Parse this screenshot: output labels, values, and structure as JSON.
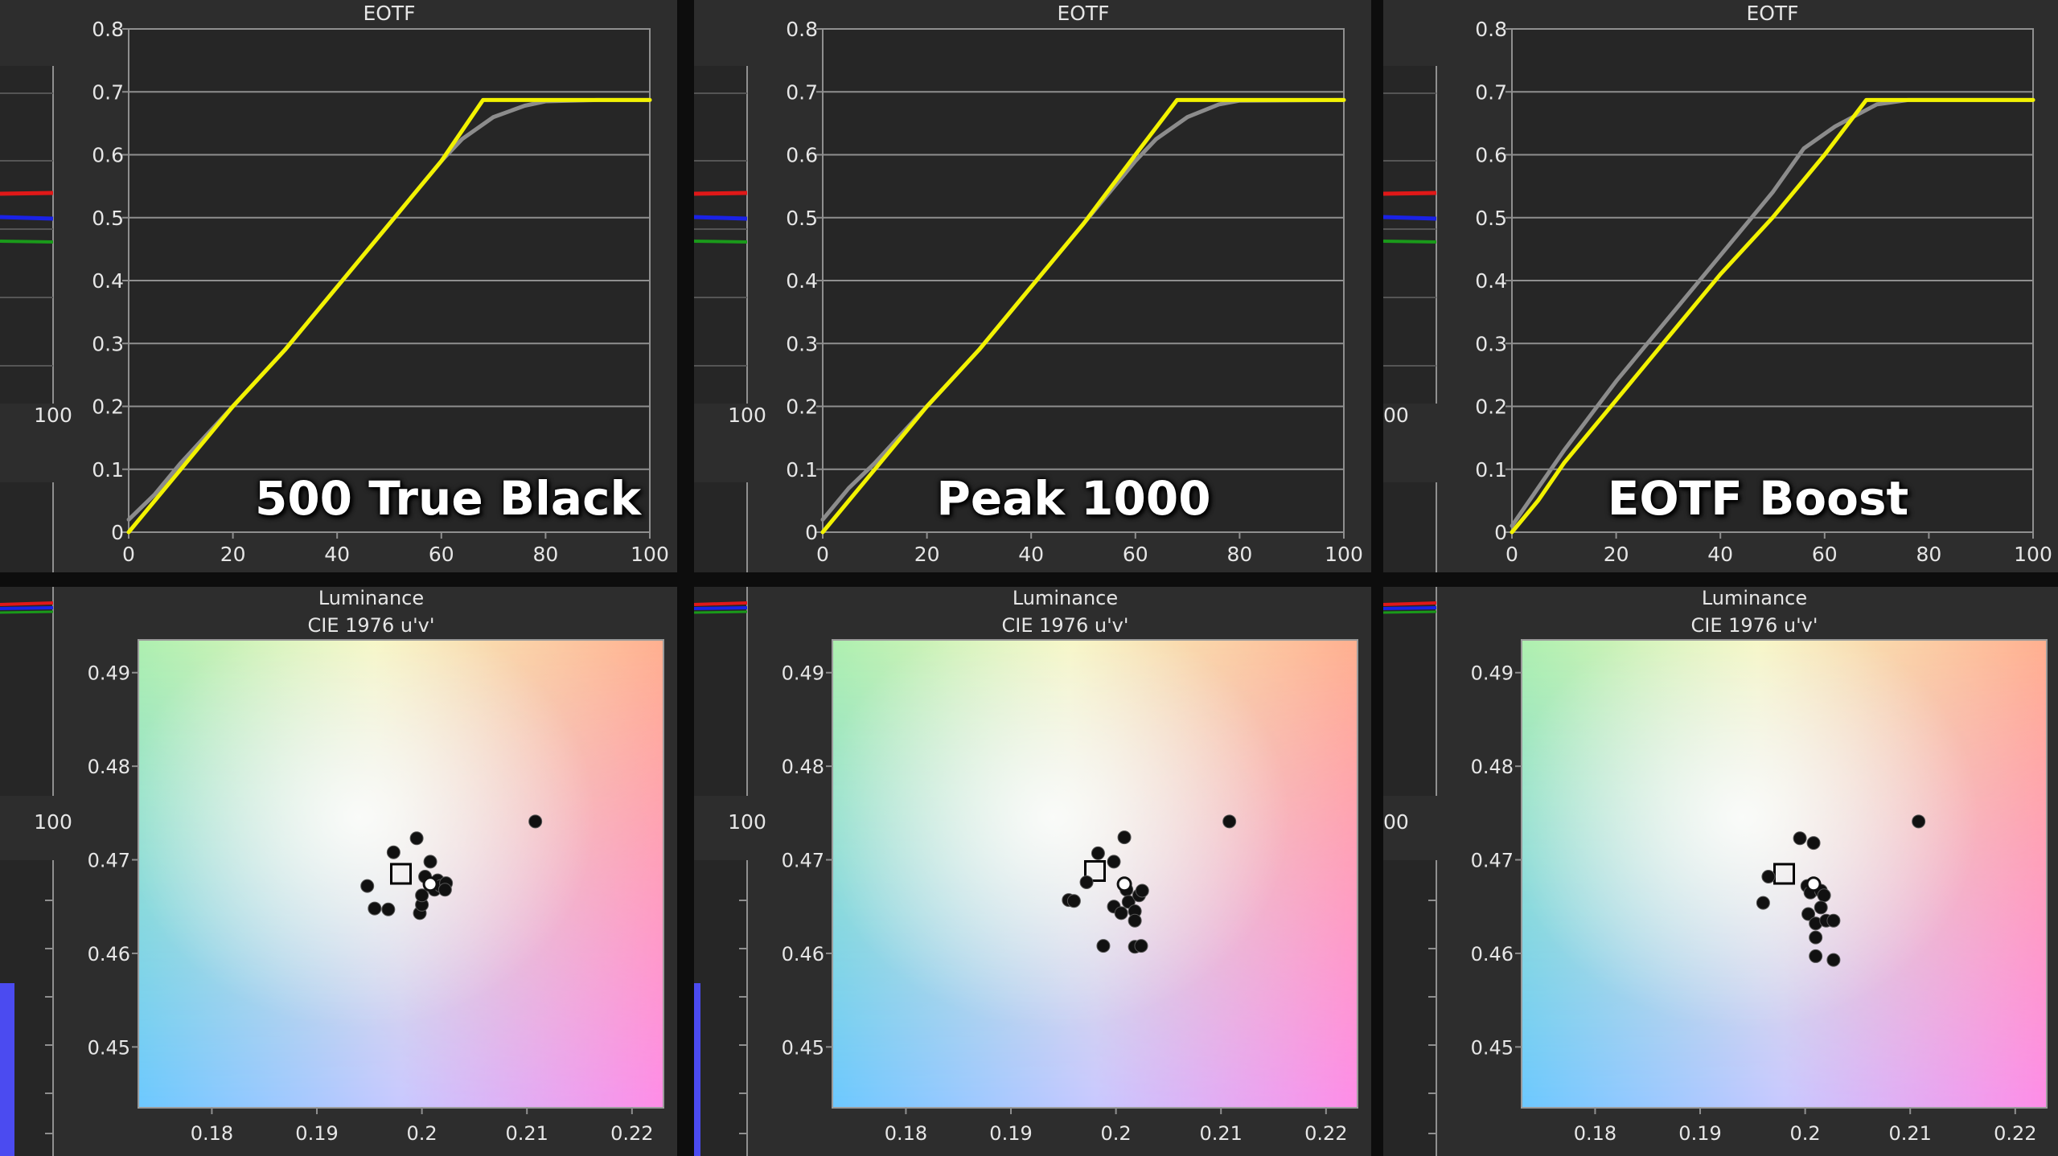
{
  "colors": {
    "panel_bg": "#2d2d2d",
    "plot_bg": "#262626",
    "grid": "#8f8f8f",
    "axis_text": "#e6e6e6",
    "measured": "#f2f200",
    "target": "#8c8c8c",
    "red_line": "#e01818",
    "blue_line": "#1a22e6",
    "green_line": "#1a9a1a",
    "bar_blue": "#4b4bf0"
  },
  "left_fragments": {
    "top_tick_label": "100",
    "bottom_tick_label": "100",
    "cropped_tick_label": "00"
  },
  "chart_data": [
    {
      "type": "line",
      "title": "EOTF",
      "overlay_label": "500 True Black",
      "xlim": [
        0,
        100
      ],
      "ylim": [
        0,
        0.8
      ],
      "x_ticks": [
        "0",
        "20",
        "40",
        "60",
        "80",
        "100"
      ],
      "y_ticks": [
        "0",
        "0.1",
        "0.2",
        "0.3",
        "0.4",
        "0.5",
        "0.6",
        "0.7",
        "0.8"
      ],
      "grid": true,
      "series": [
        {
          "role": "target",
          "points": [
            [
              0,
              0.02
            ],
            [
              5,
              0.06
            ],
            [
              10,
              0.11
            ],
            [
              20,
              0.2
            ],
            [
              30,
              0.29
            ],
            [
              40,
              0.39
            ],
            [
              50,
              0.49
            ],
            [
              60,
              0.59
            ],
            [
              64,
              0.625
            ],
            [
              70,
              0.66
            ],
            [
              76,
              0.678
            ],
            [
              80,
              0.685
            ],
            [
              90,
              0.687
            ],
            [
              100,
              0.687
            ]
          ]
        },
        {
          "role": "measured",
          "points": [
            [
              0,
              0.0
            ],
            [
              5,
              0.05
            ],
            [
              10,
              0.1
            ],
            [
              20,
              0.2
            ],
            [
              30,
              0.29
            ],
            [
              40,
              0.39
            ],
            [
              50,
              0.49
            ],
            [
              60,
              0.59
            ],
            [
              68,
              0.687
            ],
            [
              80,
              0.687
            ],
            [
              100,
              0.687
            ]
          ]
        }
      ]
    },
    {
      "type": "line",
      "title": "EOTF",
      "overlay_label": "Peak 1000",
      "xlim": [
        0,
        100
      ],
      "ylim": [
        0,
        0.8
      ],
      "x_ticks": [
        "0",
        "20",
        "40",
        "60",
        "80",
        "100"
      ],
      "y_ticks": [
        "0",
        "0.1",
        "0.2",
        "0.3",
        "0.4",
        "0.5",
        "0.6",
        "0.7",
        "0.8"
      ],
      "grid": true,
      "series": [
        {
          "role": "target",
          "points": [
            [
              0,
              0.02
            ],
            [
              5,
              0.07
            ],
            [
              10,
              0.11
            ],
            [
              20,
              0.2
            ],
            [
              30,
              0.29
            ],
            [
              40,
              0.39
            ],
            [
              50,
              0.49
            ],
            [
              60,
              0.59
            ],
            [
              64,
              0.625
            ],
            [
              70,
              0.66
            ],
            [
              76,
              0.68
            ],
            [
              80,
              0.686
            ],
            [
              100,
              0.687
            ]
          ]
        },
        {
          "role": "measured",
          "points": [
            [
              0,
              0.0
            ],
            [
              5,
              0.05
            ],
            [
              10,
              0.1
            ],
            [
              20,
              0.2
            ],
            [
              30,
              0.29
            ],
            [
              40,
              0.39
            ],
            [
              50,
              0.49
            ],
            [
              60,
              0.6
            ],
            [
              68,
              0.687
            ],
            [
              80,
              0.687
            ],
            [
              100,
              0.687
            ]
          ]
        }
      ]
    },
    {
      "type": "line",
      "title": "EOTF",
      "overlay_label": "EOTF Boost",
      "xlim": [
        0,
        100
      ],
      "ylim": [
        0,
        0.8
      ],
      "x_ticks": [
        "0",
        "20",
        "40",
        "60",
        "80",
        "100"
      ],
      "y_ticks": [
        "0",
        "0.1",
        "0.2",
        "0.3",
        "0.4",
        "0.5",
        "0.6",
        "0.7",
        "0.8"
      ],
      "grid": true,
      "series": [
        {
          "role": "target",
          "points": [
            [
              0,
              0.01
            ],
            [
              5,
              0.07
            ],
            [
              10,
              0.13
            ],
            [
              20,
              0.24
            ],
            [
              30,
              0.34
            ],
            [
              40,
              0.44
            ],
            [
              50,
              0.54
            ],
            [
              56,
              0.61
            ],
            [
              62,
              0.645
            ],
            [
              70,
              0.68
            ],
            [
              76,
              0.687
            ],
            [
              100,
              0.687
            ]
          ]
        },
        {
          "role": "measured",
          "points": [
            [
              0,
              0.0
            ],
            [
              5,
              0.05
            ],
            [
              10,
              0.11
            ],
            [
              20,
              0.21
            ],
            [
              30,
              0.31
            ],
            [
              40,
              0.41
            ],
            [
              50,
              0.5
            ],
            [
              60,
              0.6
            ],
            [
              68,
              0.687
            ],
            [
              72,
              0.687
            ],
            [
              100,
              0.687
            ]
          ]
        }
      ]
    },
    {
      "type": "scatter",
      "title": "Luminance",
      "subtitle": "CIE 1976 u'v'",
      "xlim": [
        0.173,
        0.223
      ],
      "ylim": [
        0.4435,
        0.4935
      ],
      "x_ticks": [
        "0.18",
        "0.19",
        "0.2",
        "0.21",
        "0.22"
      ],
      "y_ticks": [
        "0.45",
        "0.46",
        "0.47",
        "0.48",
        "0.49"
      ],
      "target_point": [
        0.198,
        0.4685
      ],
      "white_point": [
        0.2008,
        0.4674
      ],
      "points": [
        [
          0.1948,
          0.4672
        ],
        [
          0.1955,
          0.4648
        ],
        [
          0.1968,
          0.4647
        ],
        [
          0.1973,
          0.4708
        ],
        [
          0.1995,
          0.4723
        ],
        [
          0.1998,
          0.4643
        ],
        [
          0.2,
          0.4652
        ],
        [
          0.2003,
          0.4682
        ],
        [
          0.2008,
          0.4698
        ],
        [
          0.2012,
          0.4668
        ],
        [
          0.2015,
          0.4678
        ],
        [
          0.2018,
          0.4672
        ],
        [
          0.2023,
          0.4675
        ],
        [
          0.2022,
          0.4668
        ],
        [
          0.2,
          0.4662
        ],
        [
          0.2108,
          0.4741
        ]
      ]
    },
    {
      "type": "scatter",
      "title": "Luminance",
      "subtitle": "CIE 1976 u'v'",
      "xlim": [
        0.173,
        0.223
      ],
      "ylim": [
        0.4435,
        0.4935
      ],
      "x_ticks": [
        "0.18",
        "0.19",
        "0.2",
        "0.21",
        "0.22"
      ],
      "y_ticks": [
        "0.45",
        "0.46",
        "0.47",
        "0.48",
        "0.49"
      ],
      "target_point": [
        0.198,
        0.4688
      ],
      "white_point": [
        0.2008,
        0.4674
      ],
      "points": [
        [
          0.1955,
          0.4657
        ],
        [
          0.196,
          0.4656
        ],
        [
          0.1972,
          0.4676
        ],
        [
          0.1983,
          0.4707
        ],
        [
          0.1998,
          0.4698
        ],
        [
          0.2008,
          0.4724
        ],
        [
          0.1988,
          0.4608
        ],
        [
          0.1998,
          0.465
        ],
        [
          0.2005,
          0.4643
        ],
        [
          0.201,
          0.4668
        ],
        [
          0.2012,
          0.4655
        ],
        [
          0.2018,
          0.4645
        ],
        [
          0.2022,
          0.4662
        ],
        [
          0.2025,
          0.4667
        ],
        [
          0.2018,
          0.4635
        ],
        [
          0.2018,
          0.4607
        ],
        [
          0.2024,
          0.4608
        ],
        [
          0.2108,
          0.4741
        ]
      ]
    },
    {
      "type": "scatter",
      "title": "Luminance",
      "subtitle": "CIE 1976 u'v'",
      "xlim": [
        0.173,
        0.223
      ],
      "ylim": [
        0.4435,
        0.4935
      ],
      "x_ticks": [
        "0.18",
        "0.19",
        "0.2",
        "0.21",
        "0.22"
      ],
      "y_ticks": [
        "0.45",
        "0.46",
        "0.47",
        "0.48",
        "0.49"
      ],
      "target_point": [
        0.198,
        0.4685
      ],
      "white_point": [
        0.2008,
        0.4674
      ],
      "points": [
        [
          0.196,
          0.4654
        ],
        [
          0.1965,
          0.4682
        ],
        [
          0.1995,
          0.4723
        ],
        [
          0.2008,
          0.4718
        ],
        [
          0.2002,
          0.4672
        ],
        [
          0.2005,
          0.4665
        ],
        [
          0.2003,
          0.4642
        ],
        [
          0.201,
          0.4632
        ],
        [
          0.2015,
          0.4667
        ],
        [
          0.2018,
          0.4662
        ],
        [
          0.2015,
          0.4649
        ],
        [
          0.202,
          0.4635
        ],
        [
          0.2027,
          0.4635
        ],
        [
          0.201,
          0.4617
        ],
        [
          0.201,
          0.4597
        ],
        [
          0.2027,
          0.4593
        ],
        [
          0.2108,
          0.4741
        ]
      ]
    }
  ]
}
